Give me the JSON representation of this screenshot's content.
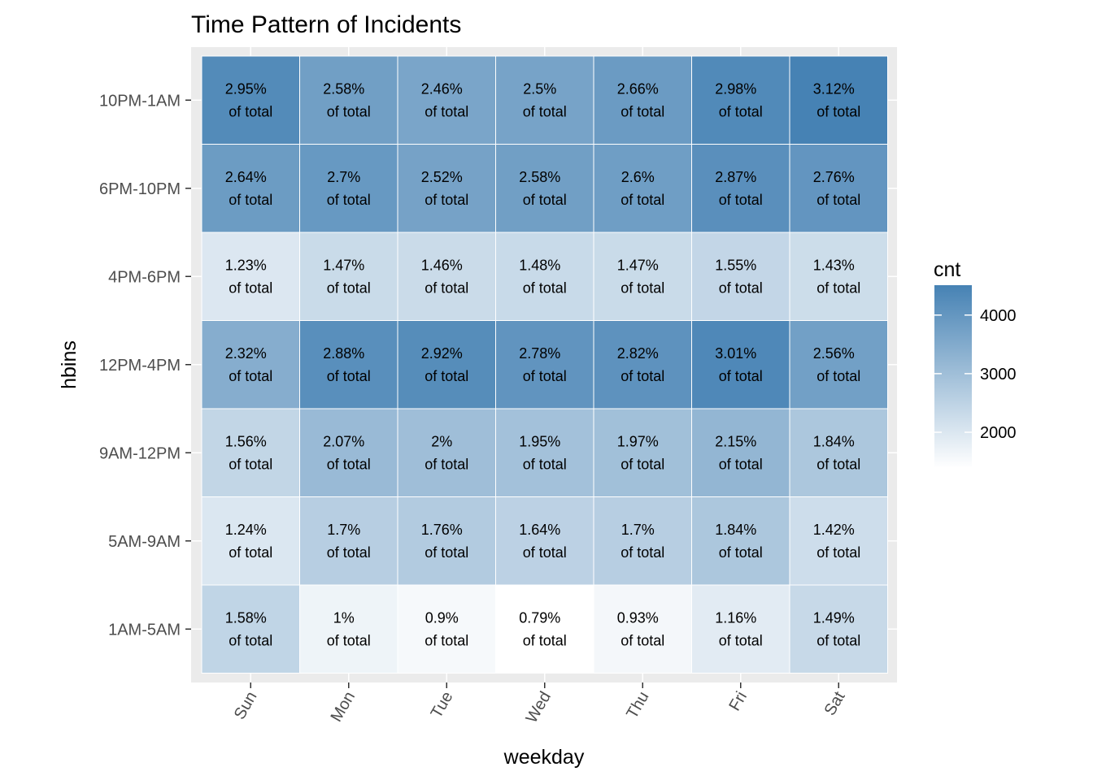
{
  "chart_data": {
    "type": "heatmap",
    "title": "Time Pattern of Incidents",
    "xlabel": "weekday",
    "ylabel": "hbins",
    "x_categories": [
      "Sun",
      "Mon",
      "Tue",
      "Wed",
      "Thu",
      "Fri",
      "Sat"
    ],
    "y_categories": [
      "10PM-1AM",
      "6PM-10PM",
      "4PM-6PM",
      "12PM-4PM",
      "9AM-12PM",
      "5AM-9AM",
      "1AM-5AM"
    ],
    "cell_suffix": "of total",
    "percent_labels": [
      [
        "2.95%",
        "2.58%",
        "2.46%",
        "2.5%",
        "2.66%",
        "2.98%",
        "3.12%"
      ],
      [
        "2.64%",
        "2.7%",
        "2.52%",
        "2.58%",
        "2.6%",
        "2.87%",
        "2.76%"
      ],
      [
        "1.23%",
        "1.47%",
        "1.46%",
        "1.48%",
        "1.47%",
        "1.55%",
        "1.43%"
      ],
      [
        "2.32%",
        "2.88%",
        "2.92%",
        "2.78%",
        "2.82%",
        "3.01%",
        "2.56%"
      ],
      [
        "1.56%",
        "2.07%",
        "2%",
        "1.95%",
        "1.97%",
        "2.15%",
        "1.84%"
      ],
      [
        "1.24%",
        "1.7%",
        "1.76%",
        "1.64%",
        "1.7%",
        "1.84%",
        "1.42%"
      ],
      [
        "1.58%",
        "1%",
        "0.9%",
        "0.79%",
        "0.93%",
        "1.16%",
        "1.49%"
      ]
    ],
    "percent_values": [
      [
        2.95,
        2.58,
        2.46,
        2.5,
        2.66,
        2.98,
        3.12
      ],
      [
        2.64,
        2.7,
        2.52,
        2.58,
        2.6,
        2.87,
        2.76
      ],
      [
        1.23,
        1.47,
        1.46,
        1.48,
        1.47,
        1.55,
        1.43
      ],
      [
        2.32,
        2.88,
        2.92,
        2.78,
        2.82,
        3.01,
        2.56
      ],
      [
        1.56,
        2.07,
        2.0,
        1.95,
        1.97,
        2.15,
        1.84
      ],
      [
        1.24,
        1.7,
        1.76,
        1.64,
        1.7,
        1.84,
        1.42
      ],
      [
        1.58,
        1.0,
        0.9,
        0.79,
        0.93,
        1.16,
        1.49
      ]
    ],
    "legend": {
      "title": "cnt",
      "position": "right",
      "ticks": [
        2000,
        3000,
        4000
      ],
      "range": [
        1390,
        4510
      ],
      "low_color": "#ffffff",
      "high_color": "#4682b4"
    },
    "grid": true
  }
}
